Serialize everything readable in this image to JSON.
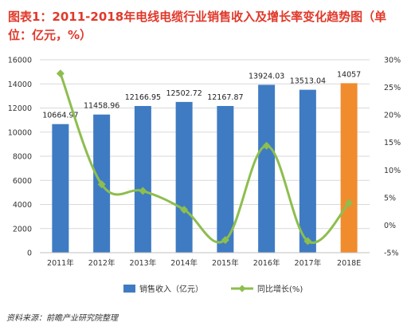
{
  "chart_data": {
    "type": "bar",
    "title": "图表1：2011-2018年电线电缆行业销售收入及增长率变化趋势图（单位：亿元，%）",
    "categories": [
      "2011年",
      "2012年",
      "2013年",
      "2014年",
      "2015年",
      "2016年",
      "2017年",
      "2018E"
    ],
    "series": [
      {
        "name": "销售收入（亿元）",
        "type": "bar",
        "axis": "left",
        "color": "#3F7BC2",
        "highlight_color": "#F08C2E",
        "highlight_index": 7,
        "values": [
          10664.97,
          11458.96,
          12166.95,
          12502.72,
          12167.87,
          13924.03,
          13513.04,
          14057
        ],
        "labels": [
          "10664.97",
          "11458.96",
          "12166.95",
          "12502.72",
          "12167.87",
          "13924.03",
          "13513.04",
          "14057"
        ]
      },
      {
        "name": "同比增长(%)",
        "type": "line",
        "axis": "right",
        "color": "#8DBE4E",
        "marker": "diamond",
        "values": [
          27.5,
          7.4,
          6.2,
          2.8,
          -2.7,
          14.4,
          -2.9,
          4.0
        ]
      }
    ],
    "y_left": {
      "ylim": [
        0,
        16000
      ],
      "ticks": [
        0,
        2000,
        4000,
        6000,
        8000,
        10000,
        12000,
        14000,
        16000
      ]
    },
    "y_right": {
      "ylim": [
        -5,
        30
      ],
      "ticks": [
        -5,
        0,
        5,
        10,
        15,
        20,
        25,
        30
      ],
      "tick_labels": [
        "-5%",
        "0%",
        "5%",
        "10%",
        "15%",
        "20%",
        "25%",
        "30%"
      ]
    },
    "grid": true,
    "legend_position": "bottom"
  },
  "source": "资料来源：前瞻产业研究院整理"
}
